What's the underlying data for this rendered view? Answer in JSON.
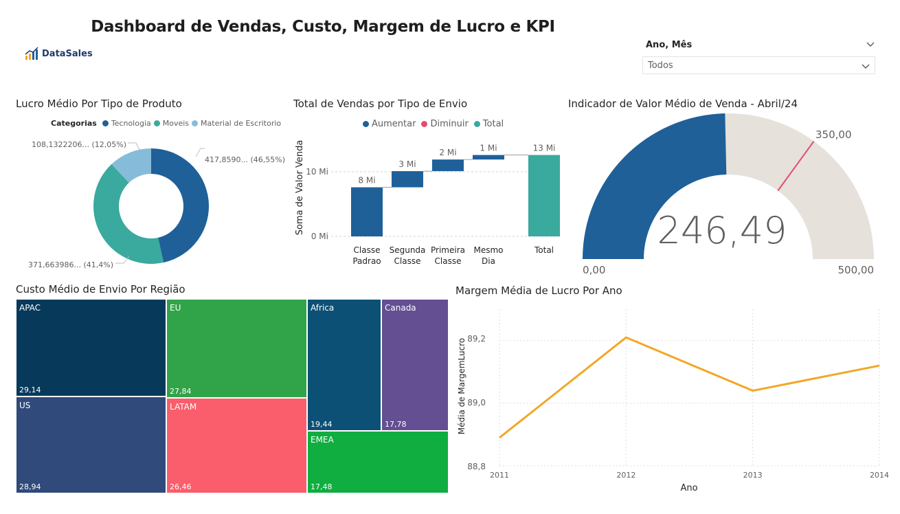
{
  "header": {
    "title": "Dashboard de Vendas, Custo, Margem de Lucro e KPI",
    "logo_text": "DataSales"
  },
  "slicer": {
    "label": "Ano, Mês",
    "value": "Todos"
  },
  "donut": {
    "title": "Lucro Médio Por Tipo de Produto",
    "legend_title": "Categorias",
    "labels": {
      "tecnologia": "417,8590... (46,55%)",
      "moveis": "371,663986... (41,4%)",
      "material": "108,1322206... (12,05%)"
    }
  },
  "waterfall": {
    "title": "Total de Vendas por Tipo de Envio",
    "legend": [
      "Aumentar",
      "Diminuir",
      "Total"
    ],
    "ylabel": "Soma de Valor Venda",
    "yticks": [
      "10 Mi",
      "0 Mi"
    ],
    "bar_labels": [
      "8 Mi",
      "3 Mi",
      "2 Mi",
      "1 Mi",
      "13 Mi"
    ],
    "cat_lines": [
      [
        "Classe",
        "Padrao"
      ],
      [
        "Segunda",
        "Classe"
      ],
      [
        "Primeira",
        "Classe"
      ],
      [
        "Mesmo",
        "Dia"
      ],
      [
        "Total",
        ""
      ]
    ]
  },
  "gauge": {
    "title": "Indicador de Valor Médio de Venda - Abril/24",
    "value_text": "246,49",
    "min_text": "0,00",
    "max_text": "500,00",
    "target_text": "350,00"
  },
  "treemap": {
    "title": "Custo Médio de Envio Por Região",
    "cells": [
      {
        "name": "APAC",
        "value": "29,14"
      },
      {
        "name": "US",
        "value": "28,94"
      },
      {
        "name": "EU",
        "value": "27,84"
      },
      {
        "name": "LATAM",
        "value": "26,46"
      },
      {
        "name": "Africa",
        "value": "19,44"
      },
      {
        "name": "Canada",
        "value": "17,78"
      },
      {
        "name": "EMEA",
        "value": "17,48"
      }
    ]
  },
  "line": {
    "title": "Margem Média de Lucro Por Ano",
    "ylabel": "Média de MargemLucro",
    "xlabel": "Ano",
    "yticks": [
      "89,2",
      "89,0",
      "88,8"
    ]
  },
  "colors": {
    "dark_blue": "#1f6099",
    "teal": "#3aa99e",
    "light_blue": "#86bcd9",
    "red": "#e04e6f",
    "gauge_bg": "#e6e1db",
    "line_orange": "#f2a726"
  },
  "chart_data": [
    {
      "type": "pie",
      "title": "Lucro Médio Por Tipo de Produto",
      "categories": [
        "Tecnologia",
        "Moveis",
        "Material de Escritorio"
      ],
      "values": [
        417.859,
        371.663986,
        108.1322206
      ],
      "percent": [
        46.55,
        41.4,
        12.05
      ],
      "legend": "top"
    },
    {
      "type": "bar",
      "subtype": "waterfall",
      "title": "Total de Vendas por Tipo de Envio",
      "categories": [
        "Classe Padrao",
        "Segunda Classe",
        "Primeira Classe",
        "Mesmo Dia",
        "Total"
      ],
      "values": [
        7.6,
        2.5,
        1.8,
        0.7,
        12.6
      ],
      "value_labels": [
        "8 Mi",
        "3 Mi",
        "2 Mi",
        "1 Mi",
        "13 Mi"
      ],
      "ylabel": "Soma de Valor Venda",
      "ylim": [
        0,
        14
      ],
      "grid": true
    },
    {
      "type": "gauge",
      "title": "Indicador de Valor Médio de Venda - Abril/24",
      "value": 246.49,
      "min": 0,
      "max": 500,
      "target": 350
    },
    {
      "type": "treemap",
      "title": "Custo Médio de Envio Por Região",
      "categories": [
        "APAC",
        "US",
        "EU",
        "LATAM",
        "Africa",
        "Canada",
        "EMEA"
      ],
      "values": [
        29.14,
        28.94,
        27.84,
        26.46,
        19.44,
        17.78,
        17.48
      ]
    },
    {
      "type": "line",
      "title": "Margem Média de Lucro Por Ano",
      "x": [
        2011,
        2012,
        2013,
        2014
      ],
      "values": [
        88.89,
        89.21,
        89.04,
        89.12
      ],
      "xlabel": "Ano",
      "ylabel": "Média de MargemLucro",
      "ylim": [
        88.8,
        89.3
      ],
      "grid": true
    }
  ]
}
